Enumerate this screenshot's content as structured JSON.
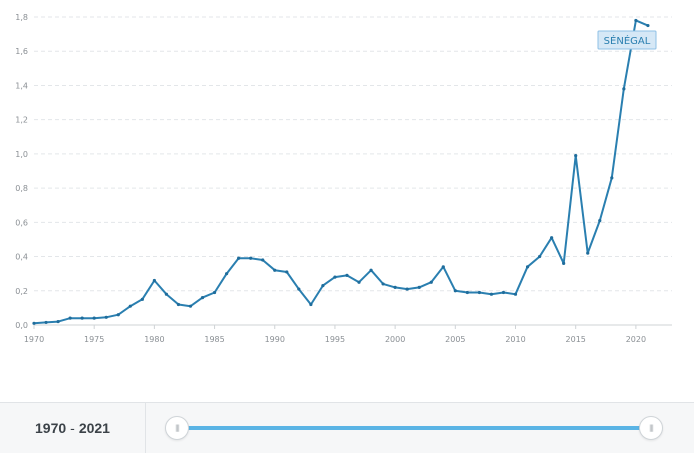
{
  "chart_data": {
    "type": "line",
    "series": [
      {
        "name": "SÉNÉGAL",
        "x": [
          1970,
          1971,
          1972,
          1973,
          1974,
          1975,
          1976,
          1977,
          1978,
          1979,
          1980,
          1981,
          1982,
          1983,
          1984,
          1985,
          1986,
          1987,
          1988,
          1989,
          1990,
          1991,
          1992,
          1993,
          1994,
          1995,
          1996,
          1997,
          1998,
          1999,
          2000,
          2001,
          2002,
          2003,
          2004,
          2005,
          2006,
          2007,
          2008,
          2009,
          2010,
          2011,
          2012,
          2013,
          2014,
          2015,
          2016,
          2017,
          2018,
          2019,
          2020,
          2021
        ],
        "values": [
          0.01,
          0.015,
          0.02,
          0.04,
          0.04,
          0.04,
          0.045,
          0.06,
          0.11,
          0.15,
          0.26,
          0.18,
          0.12,
          0.11,
          0.16,
          0.19,
          0.3,
          0.39,
          0.39,
          0.38,
          0.32,
          0.31,
          0.21,
          0.12,
          0.23,
          0.28,
          0.29,
          0.25,
          0.32,
          0.24,
          0.22,
          0.21,
          0.22,
          0.25,
          0.34,
          0.2,
          0.19,
          0.19,
          0.18,
          0.19,
          0.18,
          0.34,
          0.4,
          0.51,
          0.36,
          0.99,
          0.42,
          0.61,
          0.86,
          1.38,
          1.78,
          1.75
        ]
      }
    ],
    "ylim": [
      0,
      1.8
    ],
    "y_ticks": [
      "0,0",
      "0,2",
      "0,4",
      "0,6",
      "0,8",
      "1,0",
      "1,2",
      "1,4",
      "1,6",
      "1,8"
    ],
    "x_ticks": [
      "1970",
      "1975",
      "1980",
      "1985",
      "1990",
      "1995",
      "2000",
      "2005",
      "2010",
      "2015",
      "2020"
    ],
    "grid": true,
    "series_label_position": "top-right",
    "colors": {
      "line": "#2a7fb0",
      "slider": "#5ab4e5"
    }
  },
  "footer": {
    "range_start": "1970",
    "range_sep": "-",
    "range_end": "2021",
    "handle_left_icon": "grip-icon",
    "handle_right_icon": "grip-icon"
  }
}
